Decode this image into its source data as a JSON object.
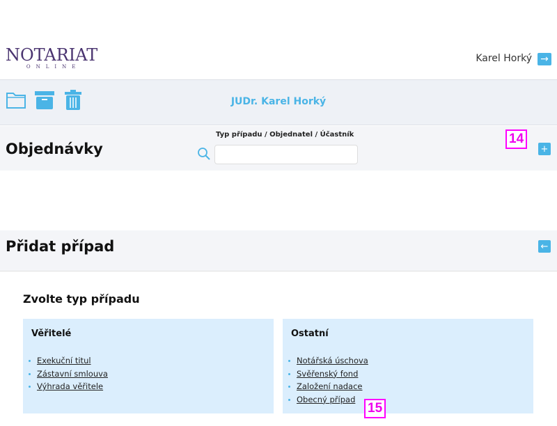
{
  "header": {
    "logo_main": "NOTARIAT",
    "logo_sub": "ONLINE",
    "user_name": "Karel Horký"
  },
  "toolbar": {
    "title": "JUDr. Karel Horký",
    "icons": [
      "folder-icon",
      "archive-icon",
      "trash-icon"
    ]
  },
  "orders": {
    "title": "Objednávky",
    "search_label": "Typ případu / Objednatel / Účastník",
    "search_value": "",
    "add_symbol": "+"
  },
  "add_case": {
    "title": "Přidat případ",
    "back_symbol": "←",
    "subtitle": "Zvolte typ případu"
  },
  "cards": [
    {
      "title": "Věřitelé",
      "items": [
        "Exekuční titul",
        "Zástavní smlouva",
        "Výhrada věřitele"
      ]
    },
    {
      "title": "Ostatní",
      "items": [
        "Notářská úschova",
        "Svěřenský fond",
        "Založení nadace",
        "Obecný případ"
      ]
    }
  ],
  "annotations": [
    "14",
    "15"
  ],
  "colors": {
    "accent": "#4ab4e6",
    "brand": "#4a3470",
    "annotation": "#ff00ff"
  }
}
